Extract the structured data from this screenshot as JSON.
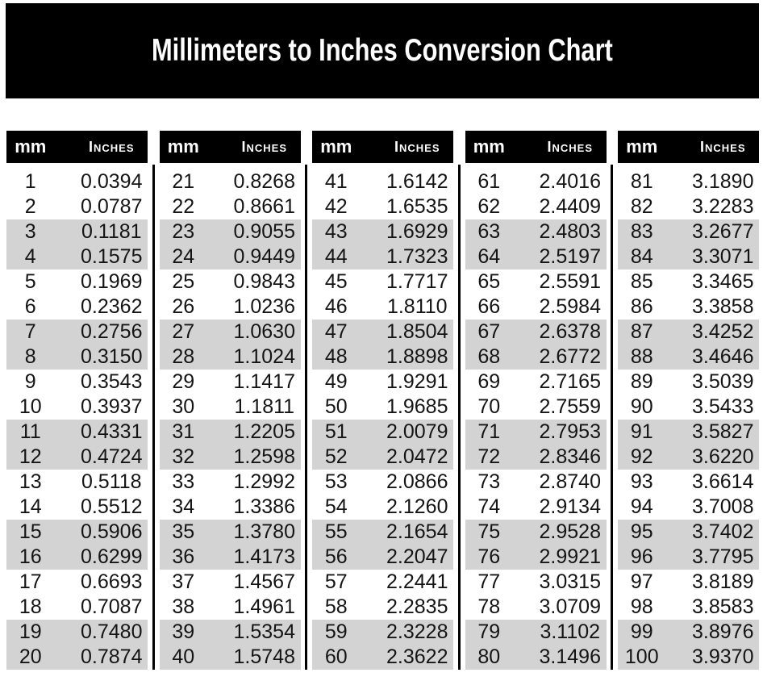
{
  "title": "Millimeters to Inches Conversion Chart",
  "header": {
    "mm_label": "mm",
    "inches_label": "Inches"
  },
  "colors": {
    "banner_bg": "#000000",
    "header_bg": "#000000",
    "header_text": "#ffffff",
    "text": "#141414",
    "shaded_row": "#d3d3d3",
    "divider": "#000000"
  },
  "tables": [
    [
      [
        "1",
        "0.0394"
      ],
      [
        "2",
        "0.0787"
      ],
      [
        "3",
        "0.1181"
      ],
      [
        "4",
        "0.1575"
      ],
      [
        "5",
        "0.1969"
      ],
      [
        "6",
        "0.2362"
      ],
      [
        "7",
        "0.2756"
      ],
      [
        "8",
        "0.3150"
      ],
      [
        "9",
        "0.3543"
      ],
      [
        "10",
        "0.3937"
      ],
      [
        "11",
        "0.4331"
      ],
      [
        "12",
        "0.4724"
      ],
      [
        "13",
        "0.5118"
      ],
      [
        "14",
        "0.5512"
      ],
      [
        "15",
        "0.5906"
      ],
      [
        "16",
        "0.6299"
      ],
      [
        "17",
        "0.6693"
      ],
      [
        "18",
        "0.7087"
      ],
      [
        "19",
        "0.7480"
      ],
      [
        "20",
        "0.7874"
      ]
    ],
    [
      [
        "21",
        "0.8268"
      ],
      [
        "22",
        "0.8661"
      ],
      [
        "23",
        "0.9055"
      ],
      [
        "24",
        "0.9449"
      ],
      [
        "25",
        "0.9843"
      ],
      [
        "26",
        "1.0236"
      ],
      [
        "27",
        "1.0630"
      ],
      [
        "28",
        "1.1024"
      ],
      [
        "29",
        "1.1417"
      ],
      [
        "30",
        "1.1811"
      ],
      [
        "31",
        "1.2205"
      ],
      [
        "32",
        "1.2598"
      ],
      [
        "33",
        "1.2992"
      ],
      [
        "34",
        "1.3386"
      ],
      [
        "35",
        "1.3780"
      ],
      [
        "36",
        "1.4173"
      ],
      [
        "37",
        "1.4567"
      ],
      [
        "38",
        "1.4961"
      ],
      [
        "39",
        "1.5354"
      ],
      [
        "40",
        "1.5748"
      ]
    ],
    [
      [
        "41",
        "1.6142"
      ],
      [
        "42",
        "1.6535"
      ],
      [
        "43",
        "1.6929"
      ],
      [
        "44",
        "1.7323"
      ],
      [
        "45",
        "1.7717"
      ],
      [
        "46",
        "1.8110"
      ],
      [
        "47",
        "1.8504"
      ],
      [
        "48",
        "1.8898"
      ],
      [
        "49",
        "1.9291"
      ],
      [
        "50",
        "1.9685"
      ],
      [
        "51",
        "2.0079"
      ],
      [
        "52",
        "2.0472"
      ],
      [
        "53",
        "2.0866"
      ],
      [
        "54",
        "2.1260"
      ],
      [
        "55",
        "2.1654"
      ],
      [
        "56",
        "2.2047"
      ],
      [
        "57",
        "2.2441"
      ],
      [
        "58",
        "2.2835"
      ],
      [
        "59",
        "2.3228"
      ],
      [
        "60",
        "2.3622"
      ]
    ],
    [
      [
        "61",
        "2.4016"
      ],
      [
        "62",
        "2.4409"
      ],
      [
        "63",
        "2.4803"
      ],
      [
        "64",
        "2.5197"
      ],
      [
        "65",
        "2.5591"
      ],
      [
        "66",
        "2.5984"
      ],
      [
        "67",
        "2.6378"
      ],
      [
        "68",
        "2.6772"
      ],
      [
        "69",
        "2.7165"
      ],
      [
        "70",
        "2.7559"
      ],
      [
        "71",
        "2.7953"
      ],
      [
        "72",
        "2.8346"
      ],
      [
        "73",
        "2.8740"
      ],
      [
        "74",
        "2.9134"
      ],
      [
        "75",
        "2.9528"
      ],
      [
        "76",
        "2.9921"
      ],
      [
        "77",
        "3.0315"
      ],
      [
        "78",
        "3.0709"
      ],
      [
        "79",
        "3.1102"
      ],
      [
        "80",
        "3.1496"
      ]
    ],
    [
      [
        "81",
        "3.1890"
      ],
      [
        "82",
        "3.2283"
      ],
      [
        "83",
        "3.2677"
      ],
      [
        "84",
        "3.3071"
      ],
      [
        "85",
        "3.3465"
      ],
      [
        "86",
        "3.3858"
      ],
      [
        "87",
        "3.4252"
      ],
      [
        "88",
        "3.4646"
      ],
      [
        "89",
        "3.5039"
      ],
      [
        "90",
        "3.5433"
      ],
      [
        "91",
        "3.5827"
      ],
      [
        "92",
        "3.6220"
      ],
      [
        "93",
        "3.6614"
      ],
      [
        "94",
        "3.7008"
      ],
      [
        "95",
        "3.7402"
      ],
      [
        "96",
        "3.7795"
      ],
      [
        "97",
        "3.8189"
      ],
      [
        "98",
        "3.8583"
      ],
      [
        "99",
        "3.8976"
      ],
      [
        "100",
        "3.9370"
      ]
    ]
  ]
}
